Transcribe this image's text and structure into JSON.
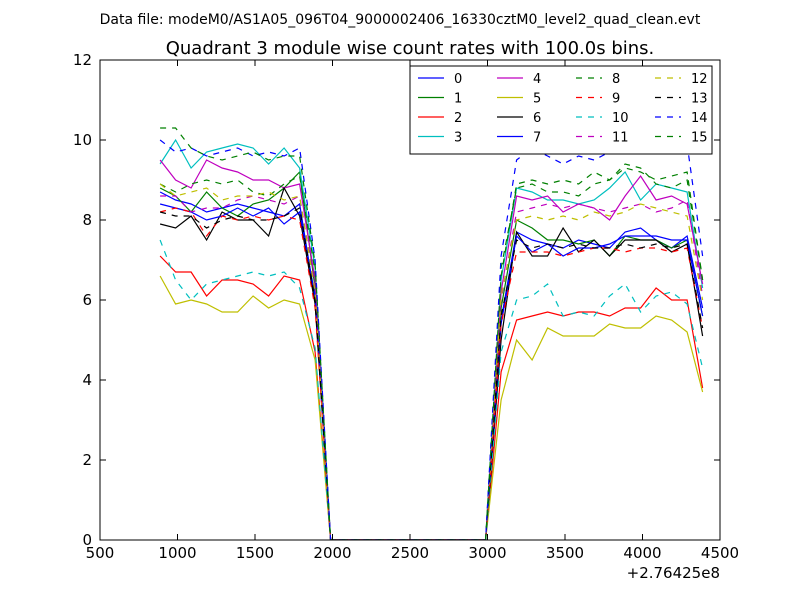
{
  "chart_data": {
    "type": "line",
    "suptitle": "Data file: modeM0/AS1A05_096T04_9000002406_16330cztM0_level2_quad_clean.evt",
    "title": "Quadrant 3 module wise count rates with 100.0s bins.",
    "xlabel": "",
    "ylabel": "",
    "x_offset_label": "+2.76425e8",
    "xlim": [
      500,
      4500
    ],
    "ylim": [
      0,
      12
    ],
    "xticks": [
      500,
      1000,
      1500,
      2000,
      2500,
      3000,
      3500,
      4000,
      4500
    ],
    "yticks": [
      0,
      2,
      4,
      6,
      8,
      10,
      12
    ],
    "xtick_labels": [
      "500",
      "1000",
      "1500",
      "2000",
      "2500",
      "3000",
      "3500",
      "4000",
      "4500"
    ],
    "ytick_labels": [
      "0",
      "2",
      "4",
      "6",
      "8",
      "10",
      "12"
    ],
    "grid": false,
    "legend": "top-right",
    "x": [
      888,
      988,
      1088,
      1188,
      1288,
      1388,
      1488,
      1588,
      1688,
      1788,
      1888,
      1988,
      2088,
      2188,
      2288,
      2388,
      2488,
      2588,
      2688,
      2788,
      2888,
      2988,
      3088,
      3188,
      3288,
      3388,
      3488,
      3588,
      3688,
      3788,
      3888,
      3988,
      4088,
      4188,
      4288,
      4388
    ],
    "series": [
      {
        "name": "0",
        "color": "#0000ff",
        "dash": "solid",
        "values": [
          8.7,
          8.5,
          8.4,
          8.2,
          8.3,
          8.4,
          8.3,
          8.2,
          8.1,
          8.4,
          6.0,
          0,
          0,
          0,
          0,
          0,
          0,
          0,
          0,
          0,
          0,
          0,
          5.5,
          7.7,
          7.5,
          7.4,
          7.3,
          7.5,
          7.4,
          7.3,
          7.7,
          7.8,
          7.5,
          7.3,
          7.6,
          5.8
        ]
      },
      {
        "name": "1",
        "color": "#008000",
        "dash": "solid",
        "values": [
          8.8,
          8.6,
          8.2,
          8.7,
          8.3,
          8.1,
          8.4,
          8.5,
          8.8,
          9.2,
          6.3,
          0,
          0,
          0,
          0,
          0,
          0,
          0,
          0,
          0,
          0,
          0,
          5.8,
          8.0,
          7.8,
          7.5,
          7.5,
          7.4,
          7.5,
          7.1,
          7.6,
          7.5,
          7.5,
          7.3,
          7.5,
          5.6
        ]
      },
      {
        "name": "2",
        "color": "#ff0000",
        "dash": "solid",
        "values": [
          7.1,
          6.7,
          6.7,
          6.1,
          6.5,
          6.5,
          6.4,
          6.1,
          6.6,
          6.5,
          4.7,
          0,
          0,
          0,
          0,
          0,
          0,
          0,
          0,
          0,
          0,
          0,
          4.2,
          5.5,
          5.6,
          5.7,
          5.6,
          5.7,
          5.7,
          5.6,
          5.8,
          5.8,
          6.3,
          6.0,
          6.0,
          3.8
        ]
      },
      {
        "name": "3",
        "color": "#00bfbf",
        "dash": "solid",
        "values": [
          9.4,
          10.0,
          9.3,
          9.7,
          9.8,
          9.9,
          9.8,
          9.4,
          9.8,
          9.3,
          6.8,
          0,
          0,
          0,
          0,
          0,
          0,
          0,
          0,
          0,
          0,
          0,
          6.5,
          8.8,
          8.7,
          8.5,
          8.5,
          8.4,
          8.5,
          8.8,
          9.2,
          8.5,
          8.9,
          8.8,
          8.7,
          6.3
        ]
      },
      {
        "name": "4",
        "color": "#bf00bf",
        "dash": "solid",
        "values": [
          9.5,
          9.0,
          8.8,
          9.5,
          9.3,
          9.2,
          9.0,
          9.0,
          8.8,
          8.9,
          6.5,
          0,
          0,
          0,
          0,
          0,
          0,
          0,
          0,
          0,
          0,
          0,
          6.2,
          8.6,
          8.5,
          8.6,
          8.2,
          8.4,
          8.3,
          8.0,
          8.6,
          9.1,
          8.5,
          8.6,
          8.4,
          6.4
        ]
      },
      {
        "name": "5",
        "color": "#bfbf00",
        "dash": "solid",
        "values": [
          6.6,
          5.9,
          6.0,
          5.9,
          5.7,
          5.7,
          6.1,
          5.8,
          6.0,
          5.9,
          4.5,
          0,
          0,
          0,
          0,
          0,
          0,
          0,
          0,
          0,
          0,
          0,
          3.5,
          5.0,
          4.5,
          5.3,
          5.1,
          5.1,
          5.1,
          5.4,
          5.3,
          5.3,
          5.6,
          5.5,
          5.2,
          3.7
        ]
      },
      {
        "name": "6",
        "color": "#000000",
        "dash": "solid",
        "values": [
          7.9,
          7.8,
          8.1,
          7.5,
          8.2,
          8.0,
          8.0,
          7.6,
          8.8,
          8.1,
          5.9,
          0,
          0,
          0,
          0,
          0,
          0,
          0,
          0,
          0,
          0,
          0,
          5.0,
          7.7,
          7.1,
          7.1,
          7.8,
          7.2,
          7.5,
          7.1,
          7.5,
          7.5,
          7.5,
          7.2,
          7.4,
          5.1
        ]
      },
      {
        "name": "7",
        "color": "#0000ff",
        "dash": "solid",
        "values": [
          8.4,
          8.3,
          8.2,
          8.0,
          8.1,
          8.3,
          8.1,
          8.3,
          7.9,
          8.2,
          6.1,
          0,
          0,
          0,
          0,
          0,
          0,
          0,
          0,
          0,
          0,
          0,
          5.4,
          7.6,
          7.2,
          7.4,
          7.1,
          7.3,
          7.3,
          7.4,
          7.6,
          7.6,
          7.6,
          7.5,
          7.5,
          5.6
        ]
      },
      {
        "name": "8",
        "color": "#008000",
        "dash": "dashed",
        "values": [
          8.9,
          8.7,
          8.9,
          9.0,
          8.9,
          9.0,
          8.7,
          8.6,
          8.9,
          9.1,
          6.7,
          0,
          0,
          0,
          0,
          0,
          0,
          0,
          0,
          0,
          0,
          0,
          6.8,
          8.8,
          8.9,
          8.7,
          8.7,
          8.6,
          8.9,
          9.0,
          9.4,
          9.3,
          8.9,
          8.8,
          9.0,
          6.5
        ]
      },
      {
        "name": "9",
        "color": "#ff0000",
        "dash": "dashed",
        "values": [
          8.2,
          8.3,
          8.2,
          7.6,
          8.1,
          8.0,
          8.1,
          8.0,
          8.1,
          8.0,
          5.8,
          0,
          0,
          0,
          0,
          0,
          0,
          0,
          0,
          0,
          0,
          0,
          5.4,
          7.2,
          7.2,
          7.2,
          7.1,
          7.2,
          7.3,
          7.3,
          7.2,
          7.3,
          7.3,
          7.2,
          7.3,
          5.3
        ]
      },
      {
        "name": "10",
        "color": "#00bfbf",
        "dash": "dashed",
        "values": [
          7.5,
          6.5,
          6.0,
          6.4,
          6.5,
          6.6,
          6.7,
          6.6,
          6.7,
          6.3,
          4.8,
          0,
          0,
          0,
          0,
          0,
          0,
          0,
          0,
          0,
          0,
          0,
          4.7,
          6.0,
          6.1,
          6.4,
          5.6,
          5.7,
          5.6,
          6.1,
          6.4,
          5.7,
          6.1,
          6.2,
          5.9,
          4.3
        ]
      },
      {
        "name": "11",
        "color": "#bf00bf",
        "dash": "dashed",
        "values": [
          8.6,
          8.6,
          8.2,
          8.3,
          8.3,
          8.5,
          8.6,
          8.5,
          8.4,
          8.6,
          6.3,
          0,
          0,
          0,
          0,
          0,
          0,
          0,
          0,
          0,
          0,
          0,
          6.0,
          8.2,
          8.3,
          8.4,
          8.3,
          8.4,
          8.3,
          8.2,
          8.3,
          8.4,
          8.2,
          8.3,
          8.5,
          6.1
        ]
      },
      {
        "name": "12",
        "color": "#bfbf00",
        "dash": "dashed",
        "values": [
          8.9,
          8.6,
          8.7,
          8.8,
          8.5,
          8.6,
          8.6,
          8.7,
          8.5,
          8.6,
          6.2,
          0,
          0,
          0,
          0,
          0,
          0,
          0,
          0,
          0,
          0,
          0,
          6.1,
          8.0,
          8.1,
          8.0,
          8.1,
          8.0,
          8.2,
          8.1,
          8.2,
          8.4,
          8.3,
          8.2,
          8.1,
          6.0
        ]
      },
      {
        "name": "13",
        "color": "#000000",
        "dash": "dashed",
        "values": [
          8.2,
          8.1,
          8.1,
          7.8,
          8.0,
          8.1,
          8.0,
          8.0,
          8.1,
          8.3,
          6.0,
          0,
          0,
          0,
          0,
          0,
          0,
          0,
          0,
          0,
          0,
          0,
          5.6,
          7.5,
          7.3,
          7.4,
          7.3,
          7.4,
          7.3,
          7.3,
          7.4,
          7.3,
          7.4,
          7.3,
          7.4,
          5.3
        ]
      },
      {
        "name": "14",
        "color": "#0000ff",
        "dash": "dashed",
        "values": [
          10.0,
          9.7,
          9.8,
          9.6,
          9.7,
          9.8,
          9.6,
          9.7,
          9.6,
          9.8,
          7.0,
          0,
          0,
          0,
          0,
          0,
          0,
          0,
          0,
          0,
          0,
          0,
          7.1,
          9.5,
          9.8,
          9.6,
          9.4,
          9.6,
          9.5,
          9.7,
          9.8,
          10.1,
          9.9,
          9.8,
          9.9,
          7.1
        ]
      },
      {
        "name": "15",
        "color": "#008000",
        "dash": "dashed",
        "values": [
          10.3,
          10.3,
          9.8,
          9.6,
          9.5,
          9.6,
          9.7,
          9.5,
          9.6,
          9.6,
          6.9,
          0,
          0,
          0,
          0,
          0,
          0,
          0,
          0,
          0,
          0,
          0,
          6.6,
          8.9,
          9.0,
          8.9,
          9.0,
          8.9,
          9.2,
          9.0,
          9.3,
          9.2,
          9.0,
          9.1,
          9.2,
          6.5
        ]
      }
    ]
  }
}
